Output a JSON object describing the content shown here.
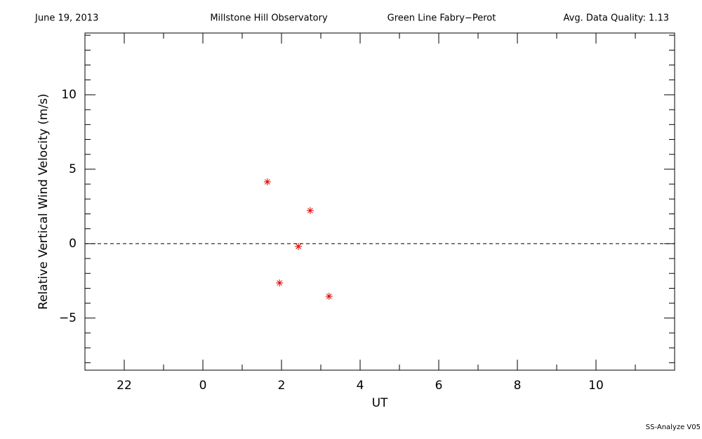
{
  "chart_data": {
    "type": "scatter",
    "header": [
      "June 19, 2013",
      "Millstone Hill Observatory",
      "Green Line Fabry−Perot",
      "Avg. Data Quality: 1.13"
    ],
    "footer": "SS-Analyze V05",
    "x_label": "UT",
    "y_label": "Relative Vertical Wind Velocity (m/s)",
    "x": [
      1.64,
      1.95,
      2.43,
      2.73,
      3.21
    ],
    "values": [
      4.15,
      -2.64,
      -0.19,
      2.22,
      -3.54
    ],
    "color": "#e00000",
    "marker": "*",
    "xlim": [
      -3,
      12
    ],
    "ylim": [
      -8.5,
      14.15
    ],
    "xticks": [
      {
        "value": -2,
        "label": "22"
      },
      0,
      2,
      4,
      6,
      8,
      10
    ],
    "yticks": [
      {
        "value": -5,
        "label": "−5"
      },
      0,
      5,
      10
    ],
    "xminorticks": [
      -3,
      -1,
      1,
      3,
      5,
      7,
      9,
      11
    ],
    "yminorticks": [
      -8,
      -7,
      -6,
      -4,
      -3,
      -2,
      -1,
      1,
      2,
      3,
      4,
      6,
      7,
      8,
      9,
      11,
      12,
      13,
      14
    ],
    "hline": 0,
    "hline_dashed": true
  }
}
